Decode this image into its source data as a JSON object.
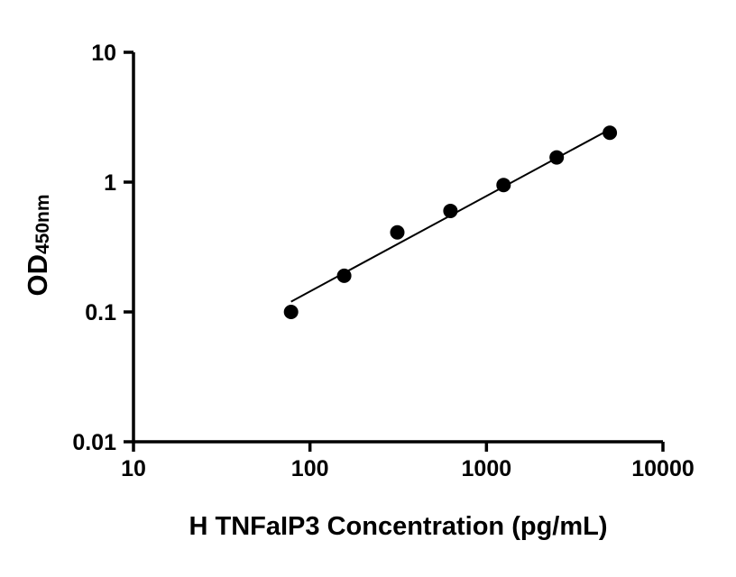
{
  "chart_data": {
    "type": "scatter",
    "title": "",
    "xlabel": "H TNFaIP3 Concentration (pg/mL)",
    "ylabel_main": "OD",
    "ylabel_sub": "450nm",
    "xscale": "log",
    "yscale": "log",
    "xlim": [
      10,
      10000
    ],
    "ylim": [
      0.01,
      10
    ],
    "grid": false,
    "legend": false,
    "x_ticks": [
      {
        "value": 10,
        "label": "10"
      },
      {
        "value": 100,
        "label": "100"
      },
      {
        "value": 1000,
        "label": "1000"
      },
      {
        "value": 10000,
        "label": "10000"
      }
    ],
    "y_ticks": [
      {
        "value": 10,
        "label": "10"
      },
      {
        "value": 1,
        "label": "1"
      },
      {
        "value": 0.1,
        "label": "0.1"
      },
      {
        "value": 0.01,
        "label": "0.01"
      }
    ],
    "points": {
      "x": [
        78.125,
        156.25,
        312.5,
        625,
        1250,
        2500,
        5000
      ],
      "y": [
        0.1,
        0.19,
        0.41,
        0.6,
        0.95,
        1.55,
        2.4
      ]
    },
    "trendline": {
      "x": [
        78.125,
        5000
      ],
      "y": [
        0.12,
        2.55
      ]
    },
    "marker_color": "#000000",
    "line_color": "#000000",
    "axis_color": "#000000"
  }
}
